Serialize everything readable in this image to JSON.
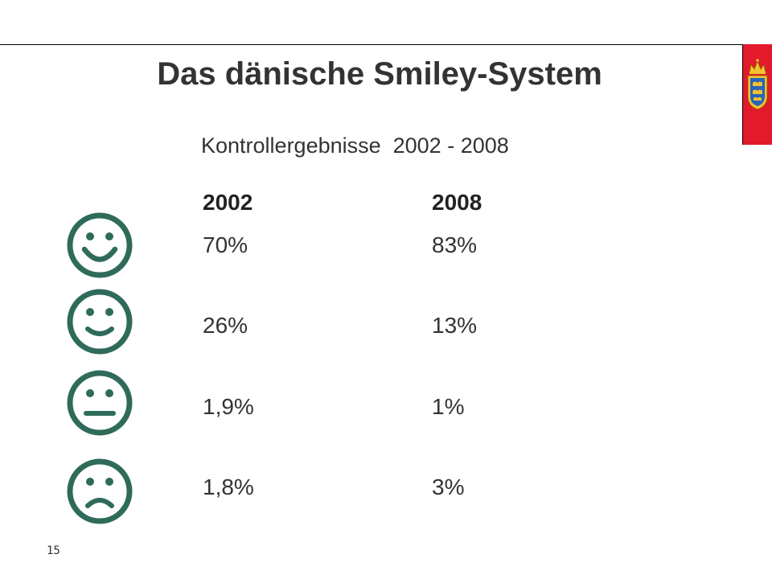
{
  "slide": {
    "title": "Das dänische Smiley-System",
    "subtitle": "Kontrollergebnisse  2002 - 2008",
    "page_number": "15",
    "accent_color": "#e21a2c",
    "smiley_color": "#2f6b5b"
  },
  "table": {
    "headers": [
      "2002",
      "2008"
    ],
    "rows": [
      {
        "icon": "big-smile-icon",
        "y2002": "70%",
        "y2008": "83%"
      },
      {
        "icon": "smile-icon",
        "y2002": "26%",
        "y2008": "13%"
      },
      {
        "icon": "neutral-face-icon",
        "y2002": "1,9%",
        "y2008": "1%"
      },
      {
        "icon": "frown-icon",
        "y2002": "1,8%",
        "y2008": "3%"
      }
    ]
  }
}
